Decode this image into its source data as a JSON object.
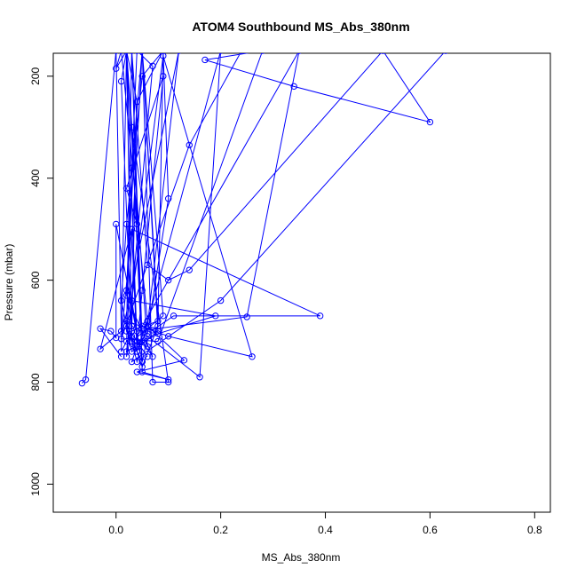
{
  "chart_data": {
    "type": "scatter",
    "title": "ATOM4 Southbound MS_Abs_380nm",
    "xlabel": "MS_Abs_380nm",
    "ylabel": "Pressure (mbar)",
    "xlim": [
      -0.12,
      0.83
    ],
    "ylim": [
      1055,
      155
    ],
    "y_reversed": true,
    "x_ticks": [
      0.0,
      0.2,
      0.4,
      0.6,
      0.8
    ],
    "x_tick_labels": [
      "0.0",
      "0.2",
      "0.4",
      "0.6",
      "0.8"
    ],
    "y_ticks": [
      200,
      400,
      600,
      800,
      1000
    ],
    "y_tick_labels": [
      "200",
      "400",
      "600",
      "800",
      "1000"
    ],
    "grid": false,
    "legend": "none",
    "series": [
      {
        "color": "#0000ff",
        "marker": "open-circle",
        "line": true,
        "points": [
          [
            -0.065,
            802
          ],
          [
            -0.058,
            795
          ],
          [
            0.0,
            150
          ],
          [
            0.01,
            700
          ],
          [
            -0.03,
            735
          ],
          [
            0.03,
            500
          ],
          [
            0.04,
            740
          ],
          [
            0.02,
            720
          ],
          [
            0.05,
            150
          ],
          [
            0.07,
            800
          ],
          [
            0.1,
            800
          ],
          [
            0.03,
            300
          ],
          [
            0.05,
            760
          ],
          [
            0.06,
            710
          ],
          [
            0.16,
            790
          ],
          [
            0.2,
            150
          ],
          [
            0.04,
            760
          ],
          [
            0.02,
            680
          ],
          [
            0.1,
            710
          ],
          [
            0.26,
            750
          ],
          [
            0.09,
            160
          ],
          [
            0.03,
            640
          ],
          [
            0.02,
            740
          ],
          [
            0.08,
            705
          ],
          [
            0.19,
            670
          ],
          [
            0.03,
            640
          ],
          [
            0.04,
            700
          ],
          [
            0.25,
            672
          ],
          [
            0.35,
            150
          ],
          [
            0.05,
            690
          ],
          [
            0.07,
            698
          ],
          [
            0.11,
            670
          ],
          [
            0.39,
            670
          ],
          [
            0.03,
            500
          ],
          [
            0.01,
            715
          ],
          [
            0.12,
            150
          ],
          [
            0.06,
            690
          ],
          [
            0.13,
            757
          ],
          [
            0.04,
            780
          ],
          [
            0.1,
            795
          ],
          [
            0.05,
            780
          ],
          [
            0.03,
            150
          ],
          [
            0.06,
            570
          ],
          [
            0.1,
            600
          ],
          [
            0.14,
            580
          ],
          [
            0.51,
            150
          ],
          [
            0.6,
            290
          ],
          [
            0.34,
            220
          ],
          [
            0.17,
            168
          ],
          [
            0.28,
            150
          ],
          [
            0.08,
            720
          ],
          [
            0.01,
            715
          ],
          [
            0.14,
            335
          ],
          [
            0.24,
            150
          ],
          [
            0.63,
            150
          ],
          [
            0.2,
            640
          ],
          [
            0.03,
            760
          ],
          [
            0.04,
            730
          ],
          [
            0.05,
            620
          ],
          [
            0.09,
            200
          ],
          [
            0.02,
            420
          ],
          [
            0.04,
            490
          ],
          [
            0.02,
            150
          ],
          [
            0.06,
            730
          ],
          [
            0.03,
            720
          ],
          [
            0.09,
            670
          ],
          [
            0.05,
            150
          ],
          [
            0.08,
            680
          ],
          [
            0.03,
            700
          ],
          [
            0.01,
            740
          ],
          [
            0.02,
            150
          ],
          [
            0.04,
            250
          ],
          [
            0.02,
            630
          ],
          [
            0.07,
            750
          ],
          [
            0.05,
            720
          ],
          [
            0.03,
            150
          ],
          [
            0.02,
            700
          ],
          [
            0.04,
            740
          ],
          [
            0.06,
            680
          ],
          [
            0.01,
            150
          ],
          [
            0.0,
            185
          ],
          [
            0.02,
            150
          ],
          [
            0.03,
            710
          ],
          [
            0.05,
            770
          ],
          [
            0.08,
            690
          ],
          [
            0.09,
            150
          ],
          [
            0.04,
            250
          ],
          [
            0.03,
            700
          ],
          [
            0.02,
            750
          ],
          [
            0.07,
            180
          ],
          [
            0.04,
            150
          ],
          [
            0.02,
            620
          ],
          [
            0.03,
            690
          ],
          [
            0.06,
            705
          ],
          [
            0.1,
            440
          ],
          [
            0.09,
            150
          ],
          [
            0.05,
            200
          ],
          [
            0.02,
            490
          ],
          [
            0.01,
            640
          ],
          [
            0.03,
            740
          ],
          [
            0.08,
            700
          ],
          [
            0.05,
            150
          ],
          [
            0.03,
            380
          ],
          [
            0.02,
            690
          ],
          [
            0.06,
            750
          ],
          [
            0.04,
            720
          ],
          [
            0.02,
            150
          ],
          [
            0.01,
            210
          ],
          [
            0.03,
            720
          ],
          [
            0.05,
            760
          ],
          [
            0.0,
            490
          ],
          [
            0.0,
            713
          ],
          [
            -0.01,
            700
          ],
          [
            -0.03,
            695
          ],
          [
            0.01,
            750
          ]
        ]
      }
    ]
  }
}
